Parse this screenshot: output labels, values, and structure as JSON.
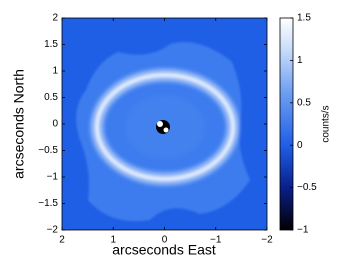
{
  "chart_data": {
    "type": "image",
    "xlabel": "arcseconds East",
    "ylabel": "arcseconds North",
    "xlim": [
      2,
      -2
    ],
    "ylim": [
      -2,
      2
    ],
    "xticks": [
      2,
      1,
      0,
      {
        "value": -1,
        "label": "−1"
      },
      {
        "value": -2,
        "label": "−2"
      }
    ],
    "yticks": [
      {
        "value": -2,
        "label": "−2"
      },
      {
        "value": -1.5,
        "label": "−1.5"
      },
      {
        "value": -1,
        "label": "−1"
      },
      {
        "value": -0.5,
        "label": "−0.5"
      },
      0,
      0.5,
      1,
      1.5,
      2
    ],
    "colorbar": {
      "label": "counts/s",
      "lim": [
        -1,
        1.5
      ],
      "ticks": [
        {
          "value": -1,
          "label": "−1"
        },
        {
          "value": -0.5,
          "label": "−0.5"
        },
        0,
        0.5,
        1,
        1.5
      ]
    }
  }
}
